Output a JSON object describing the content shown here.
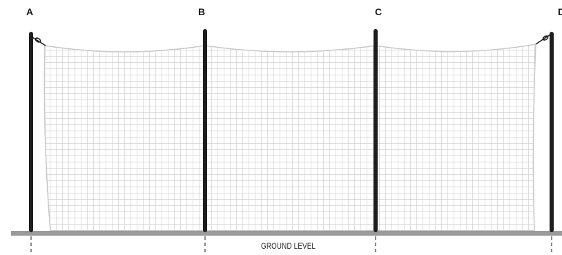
{
  "poles": {
    "a": "A",
    "b": "B",
    "c": "C",
    "d": "D"
  },
  "ground": {
    "label": "GROUND LEVEL"
  },
  "colors": {
    "net": "#c8c8c8",
    "pole": "#1e1e1e",
    "ground": "#9a9a9a"
  }
}
